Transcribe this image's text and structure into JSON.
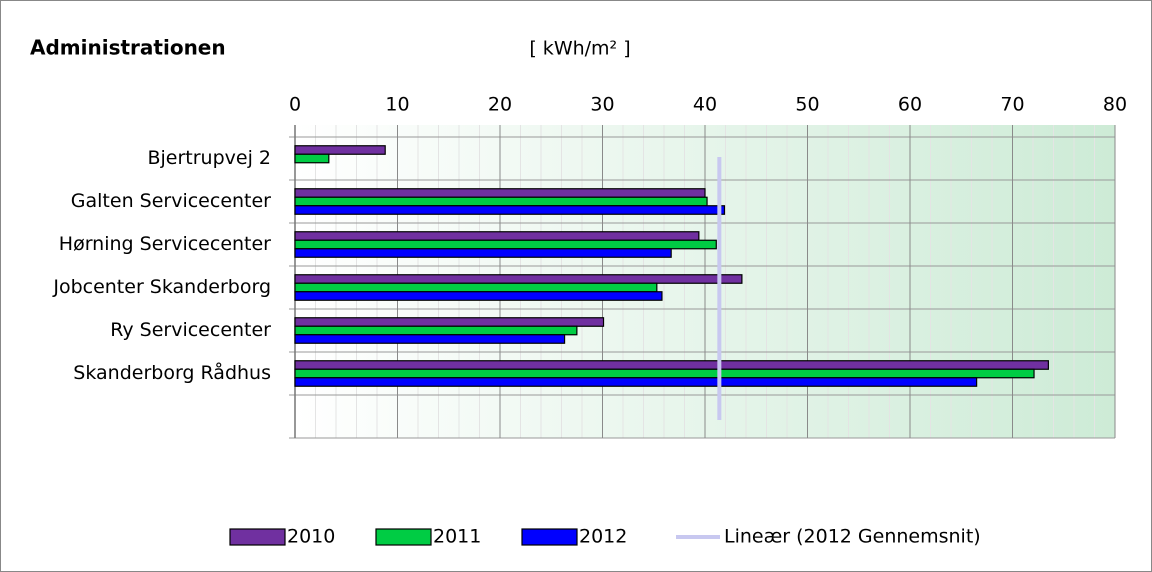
{
  "chart_data": {
    "type": "barh",
    "title": "Administrationen",
    "unit_label": "[ kWh/m² ]",
    "categories": [
      "Bjertrupvej 2",
      "Galten Servicecenter",
      "Hørning Servicecenter",
      "Jobcenter Skanderborg",
      "Ry Servicecenter",
      "Skanderborg Rådhus",
      null
    ],
    "series": [
      {
        "name": "2010",
        "color": "#7030a0",
        "values": [
          8.8,
          40.0,
          39.4,
          43.6,
          30.1,
          73.5,
          null
        ]
      },
      {
        "name": "2011",
        "color": "#00cc44",
        "values": [
          3.3,
          40.2,
          41.1,
          35.3,
          27.5,
          72.1,
          null
        ]
      },
      {
        "name": "2012",
        "color": "#0000ff",
        "values": [
          null,
          41.9,
          36.7,
          35.8,
          26.3,
          66.5,
          null
        ]
      }
    ],
    "trendline": {
      "name": "Lineær (2012 Gennemsnit)",
      "color": "#c8c8f0",
      "value": 41.4
    },
    "xlim": [
      0,
      80
    ],
    "xticks": [
      0,
      10,
      20,
      30,
      40,
      50,
      60,
      70,
      80
    ],
    "grid": true,
    "legend": "bottom"
  }
}
